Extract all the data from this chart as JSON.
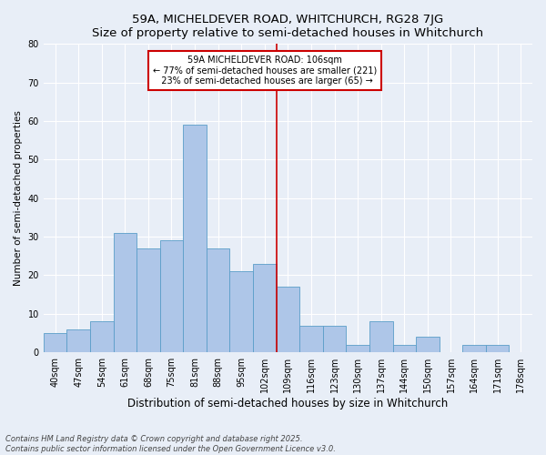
{
  "title": "59A, MICHELDEVER ROAD, WHITCHURCH, RG28 7JG",
  "subtitle": "Size of property relative to semi-detached houses in Whitchurch",
  "xlabel": "Distribution of semi-detached houses by size in Whitchurch",
  "ylabel": "Number of semi-detached properties",
  "categories": [
    "40sqm",
    "47sqm",
    "54sqm",
    "61sqm",
    "68sqm",
    "75sqm",
    "81sqm",
    "88sqm",
    "95sqm",
    "102sqm",
    "109sqm",
    "116sqm",
    "123sqm",
    "130sqm",
    "137sqm",
    "144sqm",
    "150sqm",
    "157sqm",
    "164sqm",
    "171sqm",
    "178sqm"
  ],
  "values": [
    5,
    6,
    8,
    31,
    27,
    29,
    59,
    27,
    21,
    23,
    17,
    7,
    7,
    2,
    8,
    2,
    4,
    0,
    2,
    2,
    0
  ],
  "bar_color": "#aec6e8",
  "bar_edge_color": "#5a9ec8",
  "background_color": "#e8eef7",
  "grid_color": "#ffffff",
  "property_label": "59A MICHELDEVER ROAD: 106sqm",
  "pct_smaller": 77,
  "n_smaller": 221,
  "pct_larger": 23,
  "n_larger": 65,
  "vline_x_index": 9.5,
  "annotation_box_color": "#ffffff",
  "annotation_box_edgecolor": "#cc0000",
  "vline_color": "#cc0000",
  "footer": "Contains HM Land Registry data © Crown copyright and database right 2025.\nContains public sector information licensed under the Open Government Licence v3.0.",
  "ylim": [
    0,
    80
  ],
  "title_fontsize": 9.5,
  "xlabel_fontsize": 8.5,
  "ylabel_fontsize": 7.5,
  "tick_fontsize": 7,
  "annotation_fontsize": 7,
  "footer_fontsize": 6
}
